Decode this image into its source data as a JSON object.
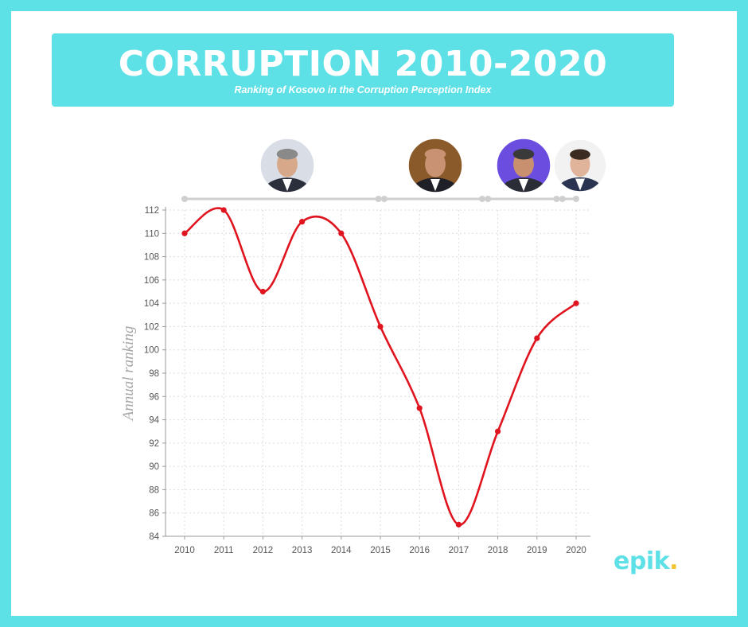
{
  "header": {
    "title": "CORRUPTION 2010-2020",
    "subtitle": "Ranking of Kosovo in the Corruption Perception Index"
  },
  "brand": {
    "name": "epik",
    "dot": ".",
    "accent": "#5de0e6",
    "dot_color": "#f4c430"
  },
  "portraits": [
    {
      "name": "portrait-1",
      "bg": "#d9dde6",
      "suit": "#2b2f3c",
      "skin": "#d8a88a",
      "hair": "#8a8a8a"
    },
    {
      "name": "portrait-2",
      "bg": "#8b5a2b",
      "suit": "#1f1f28",
      "skin": "#c99373",
      "hair": "#c99373"
    },
    {
      "name": "portrait-3",
      "bg": "#6b4de0",
      "suit": "#2a2c36",
      "skin": "#c99070",
      "hair": "#3a3a3a"
    },
    {
      "name": "portrait-4",
      "bg": "#f2f2f2",
      "suit": "#2a3350",
      "skin": "#e0b49a",
      "hair": "#3a2a20"
    }
  ],
  "chart_data": {
    "type": "line",
    "ylabel": "Annual ranking",
    "xlabel": "",
    "x": [
      "2010",
      "2011",
      "2012",
      "2013",
      "2014",
      "2015",
      "2016",
      "2017",
      "2018",
      "2019",
      "2020"
    ],
    "series": [
      {
        "values": [
          110,
          112,
          105,
          111,
          110,
          102,
          95,
          85,
          93,
          101,
          104
        ]
      }
    ],
    "ylim": [
      84,
      112
    ],
    "yticks": [
      84,
      86,
      88,
      90,
      92,
      94,
      96,
      98,
      100,
      102,
      104,
      106,
      108,
      110,
      112
    ],
    "grid": true,
    "line_color": "#e0141e",
    "timeline": {
      "segments": [
        {
          "start": 2010.0,
          "end": 2014.95
        },
        {
          "start": 2015.1,
          "end": 2017.6
        },
        {
          "start": 2017.75,
          "end": 2019.5
        },
        {
          "start": 2019.65,
          "end": 2020.0
        }
      ]
    }
  }
}
